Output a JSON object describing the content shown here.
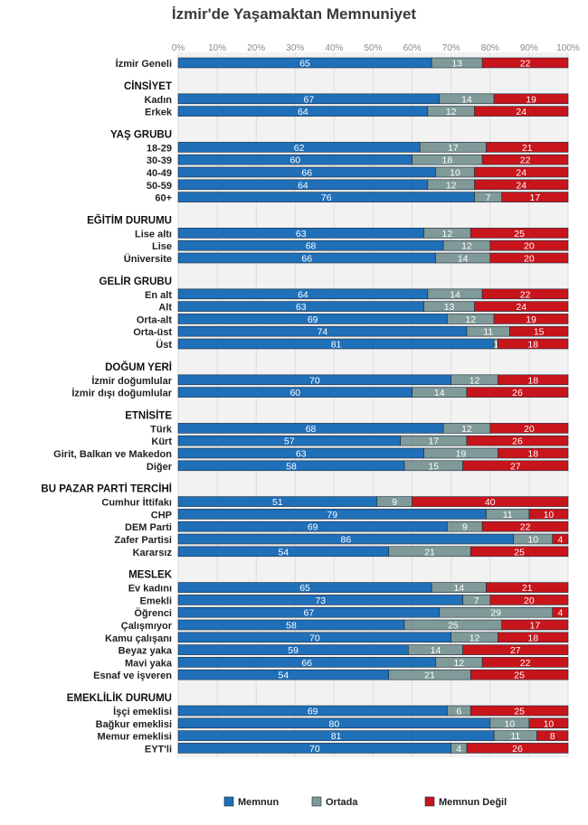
{
  "chart_data": {
    "type": "bar",
    "orientation": "horizontal",
    "stacked": true,
    "title": "İzmir'de Yaşamaktan Memnuniyet",
    "xlim": [
      0,
      100
    ],
    "x_ticks": [
      "0%",
      "10%",
      "20%",
      "30%",
      "40%",
      "50%",
      "60%",
      "70%",
      "80%",
      "90%",
      "100%"
    ],
    "legend_position": "bottom",
    "series": [
      {
        "name": "Memnun",
        "color": "#1f6fb9"
      },
      {
        "name": "Ortada",
        "color": "#7f9a98"
      },
      {
        "name": "Memnun Değil",
        "color": "#c8141b"
      }
    ],
    "groups": [
      {
        "label": "",
        "rows": [
          {
            "label": "İzmir Geneli",
            "values": [
              65,
              13,
              22
            ]
          }
        ]
      },
      {
        "label": "CİNSİYET",
        "rows": [
          {
            "label": "Kadın",
            "values": [
              67,
              14,
              19
            ]
          },
          {
            "label": "Erkek",
            "values": [
              64,
              12,
              24
            ]
          }
        ]
      },
      {
        "label": "YAŞ GRUBU",
        "rows": [
          {
            "label": "18-29",
            "values": [
              62,
              17,
              21
            ]
          },
          {
            "label": "30-39",
            "values": [
              60,
              18,
              22
            ]
          },
          {
            "label": "40-49",
            "values": [
              66,
              10,
              24
            ]
          },
          {
            "label": "50-59",
            "values": [
              64,
              12,
              24
            ]
          },
          {
            "label": "60+",
            "values": [
              76,
              7,
              17
            ]
          }
        ]
      },
      {
        "label": "EĞİTİM DURUMU",
        "rows": [
          {
            "label": "Lise altı",
            "values": [
              63,
              12,
              25
            ]
          },
          {
            "label": "Lise",
            "values": [
              68,
              12,
              20
            ]
          },
          {
            "label": "Üniversite",
            "values": [
              66,
              14,
              20
            ]
          }
        ]
      },
      {
        "label": "GELİR GRUBU",
        "rows": [
          {
            "label": "En alt",
            "values": [
              64,
              14,
              22
            ]
          },
          {
            "label": "Alt",
            "values": [
              63,
              13,
              24
            ]
          },
          {
            "label": "Orta-alt",
            "values": [
              69,
              12,
              19
            ]
          },
          {
            "label": "Orta-üst",
            "values": [
              74,
              11,
              15
            ]
          },
          {
            "label": "Üst",
            "values": [
              81,
              1,
              18
            ]
          }
        ]
      },
      {
        "label": "DOĞUM YERİ",
        "rows": [
          {
            "label": "İzmir doğumlular",
            "values": [
              70,
              12,
              18
            ]
          },
          {
            "label": "İzmir dışı doğumlular",
            "values": [
              60,
              14,
              26
            ]
          }
        ]
      },
      {
        "label": "ETNİSİTE",
        "rows": [
          {
            "label": "Türk",
            "values": [
              68,
              12,
              20
            ]
          },
          {
            "label": "Kürt",
            "values": [
              57,
              17,
              26
            ]
          },
          {
            "label": "Girit, Balkan ve Makedon",
            "values": [
              63,
              19,
              18
            ]
          },
          {
            "label": "Diğer",
            "values": [
              58,
              15,
              27
            ]
          }
        ]
      },
      {
        "label": "BU PAZAR PARTİ TERCİHİ",
        "rows": [
          {
            "label": "Cumhur İttifakı",
            "values": [
              51,
              9,
              40
            ]
          },
          {
            "label": "CHP",
            "values": [
              79,
              11,
              10
            ]
          },
          {
            "label": "DEM Parti",
            "values": [
              69,
              9,
              22
            ]
          },
          {
            "label": "Zafer Partisi",
            "values": [
              86,
              10,
              4
            ]
          },
          {
            "label": "Kararsız",
            "values": [
              54,
              21,
              25
            ]
          }
        ]
      },
      {
        "label": "MESLEK",
        "rows": [
          {
            "label": "Ev kadını",
            "values": [
              65,
              14,
              21
            ]
          },
          {
            "label": "Emekli",
            "values": [
              73,
              7,
              20
            ]
          },
          {
            "label": "Öğrenci",
            "values": [
              67,
              29,
              4
            ]
          },
          {
            "label": "Çalışmıyor",
            "values": [
              58,
              25,
              17
            ]
          },
          {
            "label": "Kamu çalışanı",
            "values": [
              70,
              12,
              18
            ]
          },
          {
            "label": "Beyaz yaka",
            "values": [
              59,
              14,
              27
            ]
          },
          {
            "label": "Mavi yaka",
            "values": [
              66,
              12,
              22
            ]
          },
          {
            "label": "Esnaf ve işveren",
            "values": [
              54,
              21,
              25
            ]
          }
        ]
      },
      {
        "label": "EMEKLİLİK DURUMU",
        "rows": [
          {
            "label": "İşçi emeklisi",
            "values": [
              69,
              6,
              25
            ]
          },
          {
            "label": "Bağkur emeklisi",
            "values": [
              80,
              10,
              10
            ]
          },
          {
            "label": "Memur emeklisi",
            "values": [
              81,
              11,
              8
            ]
          },
          {
            "label": "EYT'li",
            "values": [
              70,
              4,
              26
            ]
          }
        ]
      }
    ]
  }
}
